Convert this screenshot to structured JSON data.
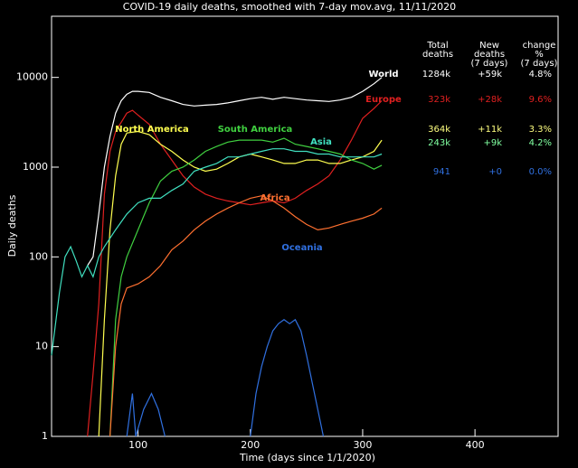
{
  "chart_data": {
    "type": "line",
    "title": "COVID-19 daily deaths, smoothed with 7-day mov.avg, 11/11/2020",
    "xlabel": "Time (days since 1/1/2020)",
    "ylabel": "Daily deaths",
    "xlim": [
      23,
      474
    ],
    "ylim": [
      1,
      48000
    ],
    "ylog": true,
    "xticks": [
      100,
      200,
      300,
      400
    ],
    "yticks": [
      1,
      10,
      100,
      1000,
      10000
    ],
    "series": [
      {
        "name": "World",
        "color": "#ffffff",
        "x": [
          55,
          60,
          65,
          70,
          75,
          80,
          85,
          90,
          95,
          100,
          110,
          120,
          130,
          140,
          150,
          160,
          170,
          180,
          190,
          200,
          210,
          220,
          230,
          240,
          250,
          260,
          270,
          280,
          290,
          300,
          310,
          317
        ],
        "values": [
          80,
          100,
          300,
          1000,
          2200,
          4000,
          5500,
          6500,
          7000,
          7000,
          6800,
          6000,
          5500,
          5000,
          4800,
          4900,
          5000,
          5200,
          5500,
          5800,
          6000,
          5700,
          6000,
          5800,
          5600,
          5500,
          5400,
          5600,
          6000,
          7000,
          8500,
          10000
        ]
      },
      {
        "name": "Europe",
        "color": "#e02020",
        "x": [
          55,
          60,
          65,
          70,
          75,
          80,
          90,
          95,
          100,
          110,
          120,
          130,
          140,
          150,
          160,
          170,
          180,
          190,
          200,
          210,
          220,
          230,
          240,
          250,
          260,
          270,
          280,
          290,
          300,
          310,
          317
        ],
        "values": [
          1,
          5,
          30,
          500,
          1500,
          2500,
          4000,
          4300,
          3800,
          3000,
          1800,
          1200,
          800,
          600,
          500,
          450,
          420,
          400,
          380,
          400,
          420,
          400,
          450,
          550,
          650,
          800,
          1200,
          2000,
          3500,
          4500,
          5500
        ]
      },
      {
        "name": "North America",
        "color": "#ffff50",
        "x": [
          65,
          70,
          75,
          80,
          85,
          90,
          100,
          110,
          120,
          130,
          140,
          150,
          160,
          170,
          180,
          190,
          200,
          210,
          220,
          230,
          240,
          250,
          260,
          270,
          280,
          290,
          300,
          310,
          317
        ],
        "values": [
          1,
          20,
          200,
          800,
          1800,
          2400,
          2500,
          2300,
          1800,
          1500,
          1200,
          1000,
          900,
          950,
          1100,
          1300,
          1400,
          1300,
          1200,
          1100,
          1100,
          1200,
          1200,
          1100,
          1100,
          1200,
          1300,
          1500,
          2000
        ]
      },
      {
        "name": "South America",
        "color": "#40d040",
        "x": [
          75,
          80,
          85,
          90,
          100,
          110,
          120,
          130,
          140,
          150,
          160,
          170,
          180,
          190,
          200,
          210,
          220,
          230,
          240,
          250,
          260,
          270,
          280,
          290,
          300,
          310,
          317
        ],
        "values": [
          1,
          20,
          60,
          100,
          200,
          400,
          700,
          900,
          1000,
          1200,
          1500,
          1700,
          1900,
          2000,
          2000,
          2000,
          1900,
          2100,
          1800,
          1700,
          1600,
          1500,
          1400,
          1200,
          1100,
          950,
          1050
        ]
      },
      {
        "name": "Asia",
        "color": "#40e0c0",
        "x": [
          23,
          30,
          35,
          40,
          45,
          50,
          55,
          60,
          65,
          70,
          80,
          90,
          100,
          110,
          120,
          130,
          140,
          150,
          160,
          170,
          180,
          190,
          200,
          210,
          220,
          230,
          240,
          250,
          260,
          270,
          280,
          290,
          300,
          310,
          317
        ],
        "values": [
          8,
          40,
          100,
          130,
          90,
          60,
          80,
          60,
          100,
          130,
          200,
          300,
          400,
          450,
          450,
          550,
          650,
          900,
          1000,
          1100,
          1300,
          1300,
          1400,
          1500,
          1600,
          1600,
          1500,
          1500,
          1400,
          1400,
          1300,
          1300,
          1300,
          1300,
          1400
        ]
      },
      {
        "name": "Africa",
        "color": "#ff7030",
        "x": [
          75,
          80,
          85,
          90,
          100,
          110,
          120,
          130,
          140,
          150,
          160,
          170,
          180,
          190,
          200,
          210,
          220,
          230,
          240,
          250,
          260,
          270,
          280,
          290,
          300,
          310,
          317
        ],
        "values": [
          1,
          10,
          30,
          45,
          50,
          60,
          80,
          120,
          150,
          200,
          250,
          300,
          350,
          400,
          450,
          480,
          420,
          350,
          280,
          230,
          200,
          210,
          230,
          250,
          270,
          300,
          350
        ]
      },
      {
        "name": "Oceania",
        "color": "#3070e0",
        "x": [
          90,
          95,
          98,
          105,
          112,
          118,
          124,
          160,
          200,
          205,
          210,
          215,
          220,
          225,
          230,
          235,
          240,
          245,
          250,
          255,
          260,
          265
        ],
        "values": [
          1,
          3,
          1,
          2,
          3,
          2,
          1,
          null,
          1,
          3,
          6,
          10,
          15,
          18,
          20,
          18,
          20,
          15,
          8,
          4,
          2,
          1
        ]
      }
    ],
    "table": {
      "headers": [
        [
          "Total",
          "deaths"
        ],
        [
          "New",
          "deaths",
          "(7 days)"
        ],
        [
          "change",
          "%",
          "(7 days)"
        ]
      ],
      "rows": [
        {
          "color": "#ffffff",
          "cells": [
            "1284k",
            "+59k",
            "4.8%"
          ]
        },
        {
          "color": "#e02020",
          "cells": [
            "323k",
            "+28k",
            "9.6%"
          ]
        },
        {
          "color": "#ffff80",
          "cells": [
            "364k",
            "+11k",
            "3.3%"
          ]
        },
        {
          "color": "#80ffa0",
          "cells": [
            "243k",
            "+9k",
            "4.2%"
          ]
        },
        {
          "color": "#3070e0",
          "cells": [
            "941",
            "+0",
            "0.0%"
          ]
        }
      ]
    }
  }
}
